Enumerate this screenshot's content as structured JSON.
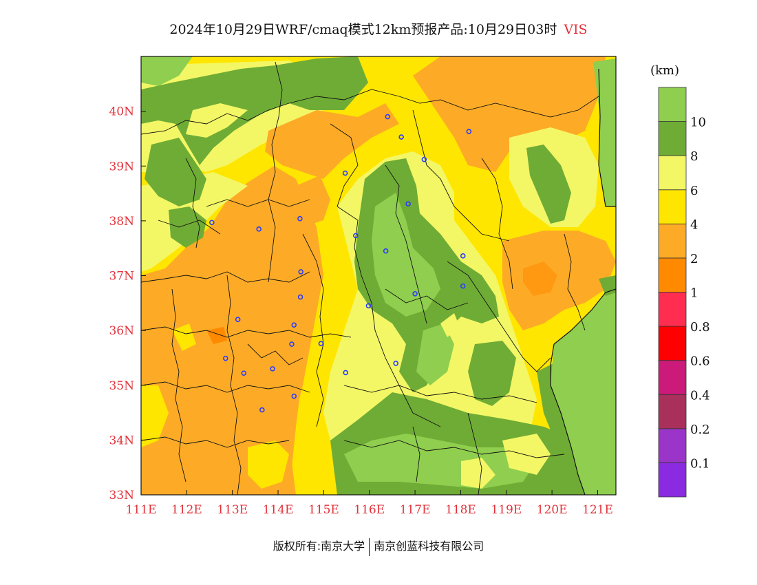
{
  "title": {
    "main": "2024年10月29日WRF/cmaq模式12km预报产品:10月29日03时",
    "variable": "VIS"
  },
  "map": {
    "lon_min": 111,
    "lon_max": 121.4,
    "lat_min": 33,
    "lat_max": 41,
    "x_ticks": [
      "111E",
      "112E",
      "113E",
      "114E",
      "115E",
      "116E",
      "117E",
      "118E",
      "119E",
      "120E",
      "121E"
    ],
    "y_ticks": [
      "33N",
      "34N",
      "35N",
      "36N",
      "37N",
      "38N",
      "39N",
      "40N"
    ],
    "tick_color": "#e2323a",
    "sea_color": "#8fce4e"
  },
  "colorbar": {
    "unit": "(km)",
    "bins": [
      {
        "color": "#8a2be2",
        "label": "0.1"
      },
      {
        "color": "#9b35c9",
        "label": "0.2"
      },
      {
        "color": "#a8305a",
        "label": "0.4"
      },
      {
        "color": "#cc1a7a",
        "label": "0.6"
      },
      {
        "color": "#ff0000",
        "label": "0.8"
      },
      {
        "color": "#ff2d4f",
        "label": "1"
      },
      {
        "color": "#ff8a00",
        "label": "2"
      },
      {
        "color": "#fdab26",
        "label": "4"
      },
      {
        "color": "#ffe600",
        "label": "6"
      },
      {
        "color": "#f3f765",
        "label": "8"
      },
      {
        "color": "#6fac35",
        "label": "10"
      },
      {
        "color": "#8fce4e",
        "label": ""
      }
    ]
  },
  "cities": [
    {
      "lon": 112.55,
      "lat": 37.97
    },
    {
      "lon": 113.58,
      "lat": 37.85
    },
    {
      "lon": 114.48,
      "lat": 38.04
    },
    {
      "lon": 115.47,
      "lat": 38.87
    },
    {
      "lon": 116.4,
      "lat": 39.9
    },
    {
      "lon": 117.2,
      "lat": 39.12
    },
    {
      "lon": 118.18,
      "lat": 39.63
    },
    {
      "lon": 116.7,
      "lat": 39.53
    },
    {
      "lon": 116.85,
      "lat": 38.31
    },
    {
      "lon": 115.7,
      "lat": 37.73
    },
    {
      "lon": 116.36,
      "lat": 37.45
    },
    {
      "lon": 118.05,
      "lat": 37.36
    },
    {
      "lon": 114.5,
      "lat": 37.07
    },
    {
      "lon": 114.49,
      "lat": 36.61
    },
    {
      "lon": 117.0,
      "lat": 36.67
    },
    {
      "lon": 118.05,
      "lat": 36.81
    },
    {
      "lon": 115.98,
      "lat": 36.45
    },
    {
      "lon": 113.12,
      "lat": 36.2
    },
    {
      "lon": 114.35,
      "lat": 36.1
    },
    {
      "lon": 114.3,
      "lat": 35.75
    },
    {
      "lon": 114.94,
      "lat": 35.76
    },
    {
      "lon": 112.85,
      "lat": 35.49
    },
    {
      "lon": 113.25,
      "lat": 35.22
    },
    {
      "lon": 113.88,
      "lat": 35.3
    },
    {
      "lon": 115.48,
      "lat": 35.23
    },
    {
      "lon": 116.58,
      "lat": 35.4
    },
    {
      "lon": 114.35,
      "lat": 34.8
    },
    {
      "lon": 113.65,
      "lat": 34.55
    }
  ],
  "footer": {
    "left": "版权所有:南京大学",
    "right": "南京创蓝科技有限公司"
  }
}
